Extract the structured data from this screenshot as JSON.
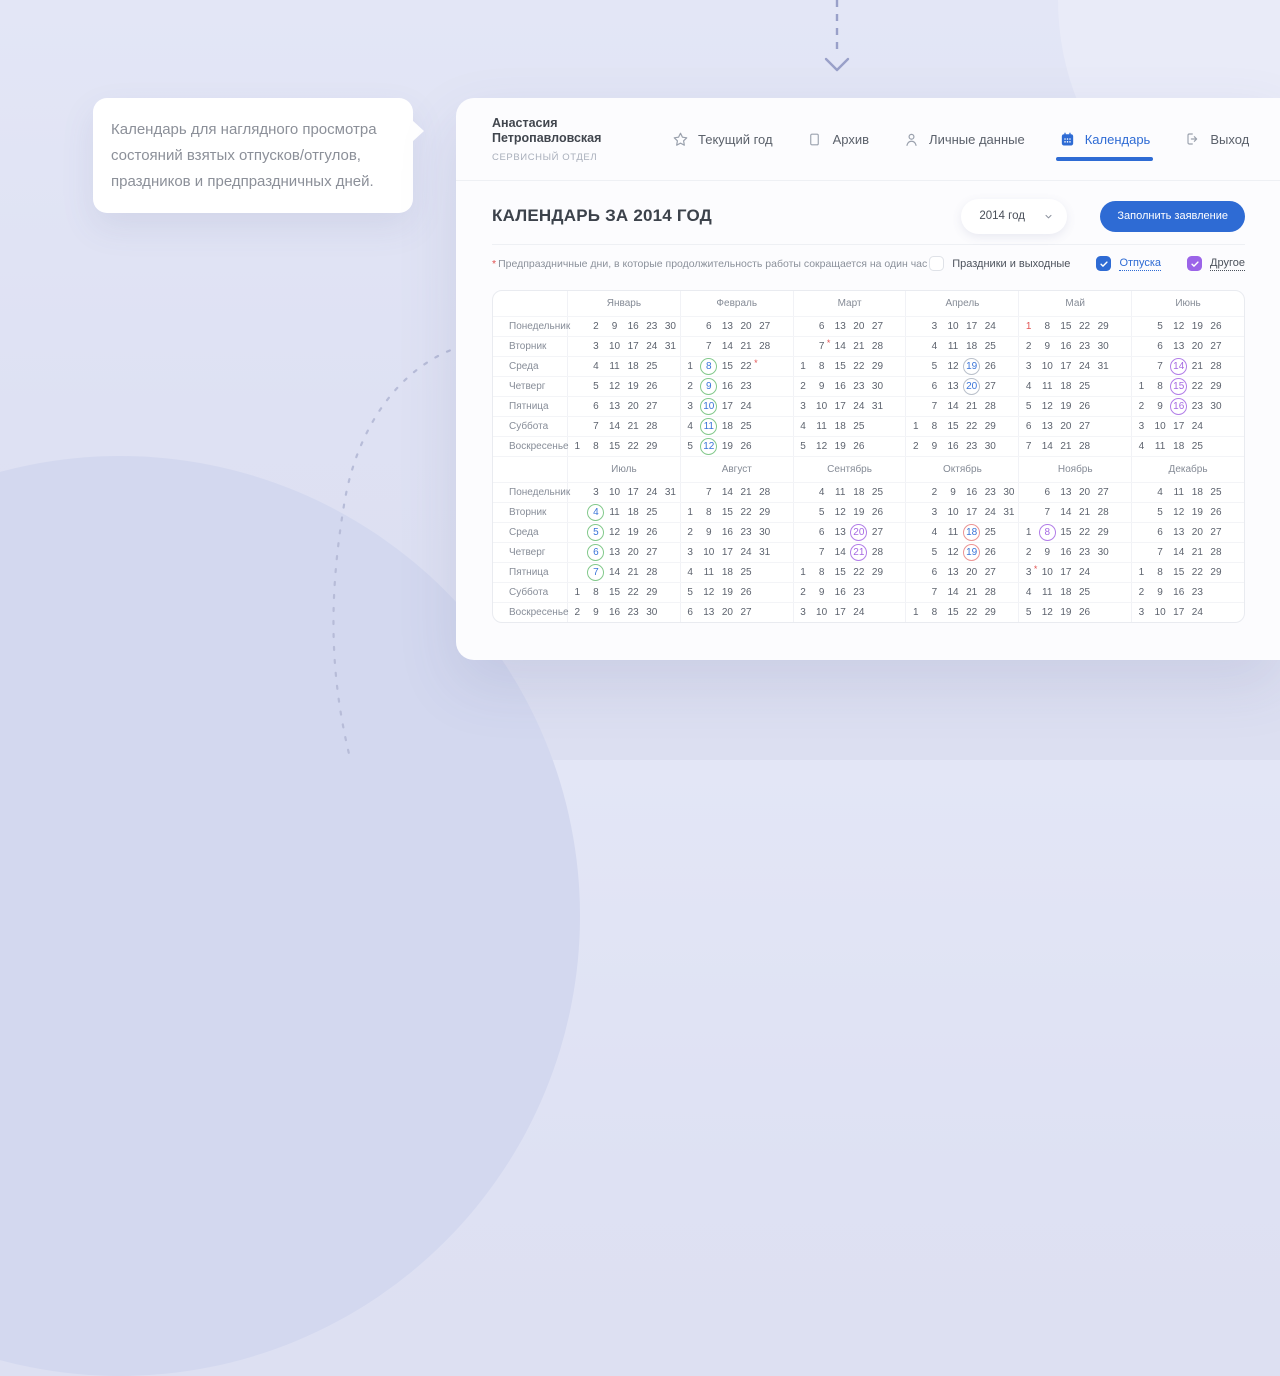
{
  "tooltip": {
    "text": "Календарь для наглядного просмотра состояний взятых отпусков/отгулов, праздников и предпраздничных дней."
  },
  "header": {
    "user_name": "Анастасия Петропавловская",
    "user_dept": "СЕРВИСНЫЙ ОТДЕЛ",
    "nav": [
      {
        "id": "current-year",
        "label": "Текущий год",
        "icon": "star",
        "active": false
      },
      {
        "id": "archive",
        "label": "Архив",
        "icon": "file",
        "active": false
      },
      {
        "id": "personal-data",
        "label": "Личные данные",
        "icon": "user",
        "active": false
      },
      {
        "id": "calendar",
        "label": "Календарь",
        "icon": "calendar",
        "active": true
      },
      {
        "id": "logout",
        "label": "Выход",
        "icon": "logout",
        "active": false
      }
    ]
  },
  "toolbar": {
    "title": "КАЛЕНДАРЬ ЗА 2014 ГОД",
    "year_value": "2014 год",
    "button_label": "Заполнить заявление"
  },
  "legend": {
    "footnote_mark": "*",
    "footnote": "Предпраздничные дни, в которые продолжительность работы сокращается на один час",
    "checkboxes": [
      {
        "id": "holidays",
        "label": "Праздники и выходные",
        "checked": false,
        "color": "#2e6bd4",
        "label_color": "#4c525c",
        "underline": false
      },
      {
        "id": "vacations",
        "label": "Отпуска",
        "checked": true,
        "color": "#2e6bd4",
        "label_color": "#2e6bd4",
        "underline": true
      },
      {
        "id": "other",
        "label": "Другое",
        "checked": true,
        "color": "#9b64e8",
        "label_color": "#4c525c",
        "underline": true
      }
    ]
  },
  "calendar": {
    "accent_blue": "#2e6bd4",
    "weekdays": [
      "Понедельник",
      "Вторник",
      "Среда",
      "Четверг",
      "Пятница",
      "Суббота",
      "Воскресенье"
    ],
    "palette": {
      "g": {
        "circle": "#83c98c",
        "text": "#3a74d8"
      },
      "gr": {
        "circle": "#b9c0cb",
        "text": "#3a74d8"
      },
      "r": {
        "circle": "#ec9494",
        "text": "#3a74d8"
      },
      "p": {
        "circle": "#b27ee8",
        "text": "#a569e2"
      },
      "h": {
        "text": "#e25555"
      },
      "s": {
        "text": "#e25555"
      }
    },
    "months": [
      {
        "name": "Январь",
        "grid": [
          [
            0,
            2,
            9,
            16,
            23,
            30
          ],
          [
            0,
            3,
            10,
            17,
            24,
            31
          ],
          [
            0,
            4,
            11,
            18,
            25,
            0
          ],
          [
            0,
            5,
            12,
            19,
            26,
            0
          ],
          [
            0,
            6,
            13,
            20,
            27,
            0
          ],
          [
            0,
            7,
            14,
            21,
            28,
            0
          ],
          [
            1,
            8,
            15,
            22,
            29,
            0
          ]
        ]
      },
      {
        "name": "Февраль",
        "grid": [
          [
            0,
            6,
            13,
            20,
            27,
            0
          ],
          [
            0,
            7,
            14,
            21,
            28,
            0
          ],
          [
            1,
            [
              8,
              "g"
            ],
            15,
            [
              22,
              "s"
            ],
            0,
            0
          ],
          [
            2,
            [
              9,
              "g"
            ],
            16,
            23,
            0,
            0
          ],
          [
            3,
            [
              10,
              "g"
            ],
            17,
            24,
            0,
            0
          ],
          [
            4,
            [
              11,
              "g"
            ],
            18,
            25,
            0,
            0
          ],
          [
            5,
            [
              12,
              "g"
            ],
            19,
            26,
            0,
            0
          ]
        ]
      },
      {
        "name": "Март",
        "grid": [
          [
            0,
            6,
            13,
            20,
            27,
            0
          ],
          [
            0,
            [
              7,
              "s"
            ],
            14,
            21,
            28,
            0
          ],
          [
            1,
            8,
            15,
            22,
            29,
            0
          ],
          [
            2,
            9,
            16,
            23,
            30,
            0
          ],
          [
            3,
            10,
            17,
            24,
            31,
            0
          ],
          [
            4,
            11,
            18,
            25,
            0,
            0
          ],
          [
            5,
            12,
            19,
            26,
            0,
            0
          ]
        ]
      },
      {
        "name": "Апрель",
        "grid": [
          [
            0,
            3,
            10,
            17,
            24,
            0
          ],
          [
            0,
            4,
            11,
            18,
            25,
            0
          ],
          [
            0,
            5,
            12,
            [
              19,
              "gr"
            ],
            26,
            0
          ],
          [
            0,
            6,
            13,
            [
              20,
              "gr"
            ],
            27,
            0
          ],
          [
            0,
            7,
            14,
            21,
            28,
            0
          ],
          [
            1,
            8,
            15,
            22,
            29,
            0
          ],
          [
            2,
            9,
            16,
            23,
            30,
            0
          ]
        ]
      },
      {
        "name": "Май",
        "grid": [
          [
            [
              1,
              "h"
            ],
            8,
            15,
            22,
            29,
            0
          ],
          [
            2,
            9,
            16,
            23,
            30,
            0
          ],
          [
            3,
            10,
            17,
            24,
            31,
            0
          ],
          [
            4,
            11,
            18,
            25,
            0,
            0
          ],
          [
            5,
            12,
            19,
            26,
            0,
            0
          ],
          [
            6,
            13,
            20,
            27,
            0,
            0
          ],
          [
            7,
            14,
            21,
            28,
            0,
            0
          ]
        ]
      },
      {
        "name": "Июнь",
        "grid": [
          [
            0,
            5,
            12,
            19,
            26,
            0
          ],
          [
            0,
            6,
            13,
            20,
            27,
            0
          ],
          [
            0,
            7,
            [
              14,
              "p"
            ],
            21,
            28,
            0
          ],
          [
            1,
            8,
            [
              15,
              "p"
            ],
            22,
            29,
            0
          ],
          [
            2,
            9,
            [
              16,
              "p"
            ],
            23,
            30,
            0
          ],
          [
            3,
            10,
            17,
            24,
            0,
            0
          ],
          [
            4,
            11,
            18,
            25,
            0,
            0
          ]
        ]
      },
      {
        "name": "Июль",
        "grid": [
          [
            0,
            3,
            10,
            17,
            24,
            31
          ],
          [
            0,
            [
              4,
              "g"
            ],
            11,
            18,
            25,
            0
          ],
          [
            0,
            [
              5,
              "g"
            ],
            12,
            19,
            26,
            0
          ],
          [
            0,
            [
              6,
              "g"
            ],
            13,
            20,
            27,
            0
          ],
          [
            0,
            [
              7,
              "g"
            ],
            14,
            21,
            28,
            0
          ],
          [
            1,
            8,
            15,
            22,
            29,
            0
          ],
          [
            2,
            9,
            16,
            23,
            30,
            0
          ]
        ]
      },
      {
        "name": "Август",
        "grid": [
          [
            0,
            7,
            14,
            21,
            28,
            0
          ],
          [
            1,
            8,
            15,
            22,
            29,
            0
          ],
          [
            2,
            9,
            16,
            23,
            30,
            0
          ],
          [
            3,
            10,
            17,
            24,
            31,
            0
          ],
          [
            4,
            11,
            18,
            25,
            0,
            0
          ],
          [
            5,
            12,
            19,
            26,
            0,
            0
          ],
          [
            6,
            13,
            20,
            27,
            0,
            0
          ]
        ]
      },
      {
        "name": "Сентябрь",
        "grid": [
          [
            0,
            4,
            11,
            18,
            25,
            0
          ],
          [
            0,
            5,
            12,
            19,
            26,
            0
          ],
          [
            0,
            6,
            13,
            [
              20,
              "p"
            ],
            27,
            0
          ],
          [
            0,
            7,
            14,
            [
              21,
              "p"
            ],
            28,
            0
          ],
          [
            1,
            8,
            15,
            22,
            29,
            0
          ],
          [
            2,
            9,
            16,
            23,
            0,
            0
          ],
          [
            3,
            10,
            17,
            24,
            0,
            0
          ]
        ]
      },
      {
        "name": "Октябрь",
        "grid": [
          [
            0,
            2,
            9,
            16,
            23,
            30
          ],
          [
            0,
            3,
            10,
            17,
            24,
            31
          ],
          [
            0,
            4,
            11,
            [
              18,
              "r"
            ],
            25,
            0
          ],
          [
            0,
            5,
            12,
            [
              19,
              "r"
            ],
            26,
            0
          ],
          [
            0,
            6,
            13,
            20,
            27,
            0
          ],
          [
            0,
            7,
            14,
            21,
            28,
            0
          ],
          [
            1,
            8,
            15,
            22,
            29,
            0
          ]
        ]
      },
      {
        "name": "Ноябрь",
        "grid": [
          [
            0,
            6,
            13,
            20,
            27,
            0
          ],
          [
            0,
            7,
            14,
            21,
            28,
            0
          ],
          [
            1,
            [
              8,
              "p"
            ],
            15,
            22,
            29,
            0
          ],
          [
            2,
            9,
            16,
            23,
            30,
            0
          ],
          [
            [
              3,
              "s"
            ],
            10,
            17,
            24,
            0,
            0
          ],
          [
            4,
            11,
            18,
            25,
            0,
            0
          ],
          [
            5,
            12,
            19,
            26,
            0,
            0
          ]
        ]
      },
      {
        "name": "Декабрь",
        "grid": [
          [
            0,
            4,
            11,
            18,
            25,
            0
          ],
          [
            0,
            5,
            12,
            19,
            26,
            0
          ],
          [
            0,
            6,
            13,
            20,
            27,
            0
          ],
          [
            0,
            7,
            14,
            21,
            28,
            0
          ],
          [
            1,
            8,
            15,
            22,
            29,
            0
          ],
          [
            2,
            9,
            16,
            23,
            0,
            0
          ],
          [
            3,
            10,
            17,
            24,
            0,
            0
          ]
        ]
      }
    ]
  }
}
